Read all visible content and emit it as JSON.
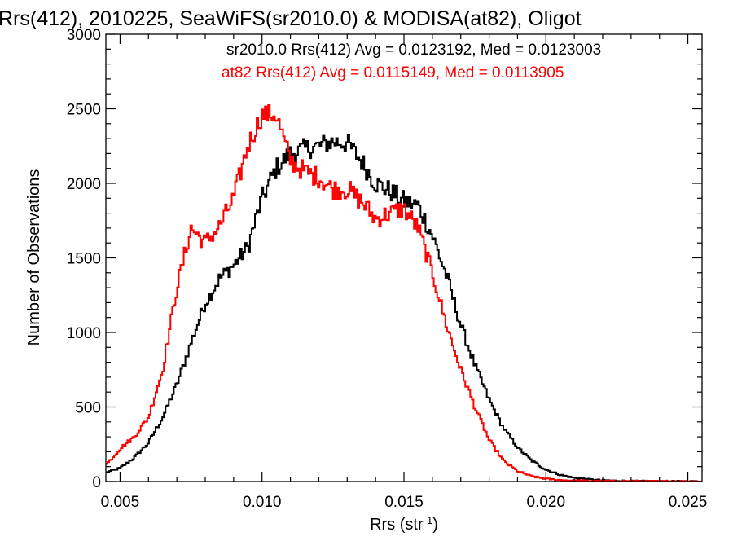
{
  "chart_data": {
    "type": "line",
    "title": "Rrs(412), 2010225, SeaWiFS(sr2010.0) & MODISA(at82), Oligot",
    "xlabel_main": "Rrs (str",
    "xlabel_sup": "-1",
    "xlabel_close": ")",
    "ylabel": "Number of Observations",
    "xlim": [
      0.0045,
      0.0255
    ],
    "ylim": [
      0,
      3000
    ],
    "xticks": [
      0.005,
      0.01,
      0.015,
      0.02,
      0.025
    ],
    "xtick_labels": [
      "0.005",
      "0.010",
      "0.015",
      "0.020",
      "0.025"
    ],
    "yticks": [
      0,
      500,
      1000,
      1500,
      2000,
      2500,
      3000
    ],
    "ytick_labels": [
      "0",
      "500",
      "1000",
      "1500",
      "2000",
      "2500",
      "3000"
    ],
    "grid": false,
    "series": [
      {
        "color": "#000000",
        "stat_text": "sr2010.0 Rrs(412) Avg = 0.0123192, Med = 0.0123003",
        "points": [
          [
            0.0045,
            60
          ],
          [
            0.005,
            90
          ],
          [
            0.0055,
            160
          ],
          [
            0.006,
            260
          ],
          [
            0.0065,
            430
          ],
          [
            0.007,
            650
          ],
          [
            0.0075,
            930
          ],
          [
            0.008,
            1200
          ],
          [
            0.0085,
            1360
          ],
          [
            0.009,
            1450
          ],
          [
            0.0095,
            1570
          ],
          [
            0.01,
            1900
          ],
          [
            0.0105,
            2100
          ],
          [
            0.011,
            2200
          ],
          [
            0.0115,
            2230
          ],
          [
            0.012,
            2250
          ],
          [
            0.0125,
            2280
          ],
          [
            0.013,
            2270
          ],
          [
            0.0135,
            2150
          ],
          [
            0.014,
            2000
          ],
          [
            0.0145,
            1950
          ],
          [
            0.015,
            1880
          ],
          [
            0.0155,
            1850
          ],
          [
            0.016,
            1650
          ],
          [
            0.0165,
            1380
          ],
          [
            0.017,
            1050
          ],
          [
            0.0175,
            780
          ],
          [
            0.018,
            550
          ],
          [
            0.0185,
            360
          ],
          [
            0.019,
            230
          ],
          [
            0.0195,
            140
          ],
          [
            0.02,
            80
          ],
          [
            0.0205,
            45
          ],
          [
            0.021,
            25
          ],
          [
            0.0215,
            15
          ],
          [
            0.022,
            8
          ],
          [
            0.023,
            3
          ],
          [
            0.0255,
            1
          ]
        ]
      },
      {
        "color": "#ff0000",
        "stat_text": "at82 Rrs(412) Avg = 0.0115149, Med = 0.0113905",
        "points": [
          [
            0.0045,
            110
          ],
          [
            0.005,
            220
          ],
          [
            0.0055,
            300
          ],
          [
            0.006,
            430
          ],
          [
            0.0065,
            750
          ],
          [
            0.007,
            1300
          ],
          [
            0.0075,
            1700
          ],
          [
            0.008,
            1600
          ],
          [
            0.0085,
            1710
          ],
          [
            0.009,
            1900
          ],
          [
            0.0095,
            2250
          ],
          [
            0.01,
            2460
          ],
          [
            0.0105,
            2460
          ],
          [
            0.011,
            2150
          ],
          [
            0.0115,
            2080
          ],
          [
            0.012,
            2040
          ],
          [
            0.0125,
            1960
          ],
          [
            0.013,
            1960
          ],
          [
            0.0135,
            1880
          ],
          [
            0.014,
            1760
          ],
          [
            0.0145,
            1800
          ],
          [
            0.015,
            1830
          ],
          [
            0.0155,
            1700
          ],
          [
            0.016,
            1400
          ],
          [
            0.0165,
            1050
          ],
          [
            0.017,
            750
          ],
          [
            0.0175,
            500
          ],
          [
            0.018,
            280
          ],
          [
            0.0185,
            140
          ],
          [
            0.019,
            70
          ],
          [
            0.0195,
            35
          ],
          [
            0.02,
            18
          ],
          [
            0.0205,
            10
          ],
          [
            0.021,
            6
          ],
          [
            0.022,
            3
          ],
          [
            0.0255,
            1
          ]
        ]
      }
    ]
  }
}
